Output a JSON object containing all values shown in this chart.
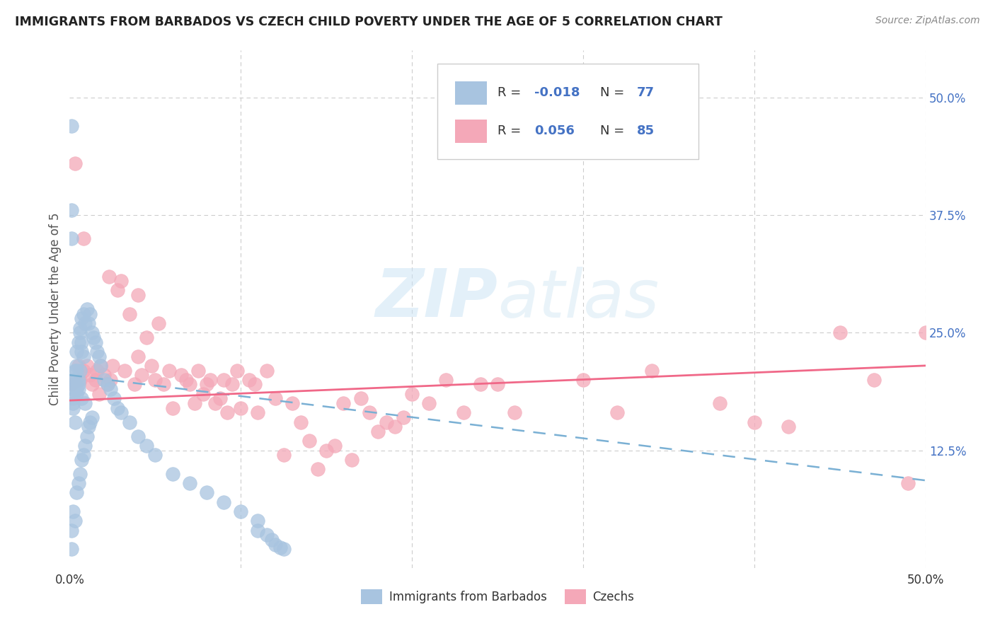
{
  "title": "IMMIGRANTS FROM BARBADOS VS CZECH CHILD POVERTY UNDER THE AGE OF 5 CORRELATION CHART",
  "source": "Source: ZipAtlas.com",
  "ylabel": "Child Poverty Under the Age of 5",
  "xlim": [
    0.0,
    0.5
  ],
  "ylim": [
    0.0,
    0.55
  ],
  "color_blue": "#a8c4e0",
  "color_pink": "#f4a8b8",
  "line_blue_color": "#7ab0d4",
  "line_pink_color": "#f06888",
  "watermark": "ZIPatlas",
  "blue_line_x0": 0.0,
  "blue_line_y0": 0.205,
  "blue_line_x1": 0.5,
  "blue_line_y1": 0.093,
  "pink_line_x0": 0.0,
  "pink_line_y0": 0.178,
  "pink_line_x1": 0.5,
  "pink_line_y1": 0.215,
  "barbados_x": [
    0.001,
    0.001,
    0.001,
    0.001,
    0.001,
    0.002,
    0.002,
    0.002,
    0.002,
    0.002,
    0.002,
    0.003,
    0.003,
    0.003,
    0.003,
    0.003,
    0.004,
    0.004,
    0.004,
    0.004,
    0.004,
    0.004,
    0.005,
    0.005,
    0.005,
    0.005,
    0.005,
    0.006,
    0.006,
    0.006,
    0.006,
    0.007,
    0.007,
    0.007,
    0.007,
    0.007,
    0.008,
    0.008,
    0.008,
    0.009,
    0.009,
    0.009,
    0.01,
    0.01,
    0.011,
    0.011,
    0.012,
    0.012,
    0.013,
    0.013,
    0.014,
    0.015,
    0.016,
    0.017,
    0.018,
    0.02,
    0.022,
    0.024,
    0.026,
    0.028,
    0.03,
    0.035,
    0.04,
    0.045,
    0.05,
    0.06,
    0.07,
    0.08,
    0.09,
    0.1,
    0.11,
    0.11,
    0.115,
    0.118,
    0.12,
    0.123,
    0.125
  ],
  "barbados_y": [
    0.47,
    0.02,
    0.35,
    0.38,
    0.04,
    0.2,
    0.19,
    0.18,
    0.175,
    0.17,
    0.06,
    0.21,
    0.2,
    0.195,
    0.155,
    0.05,
    0.23,
    0.215,
    0.21,
    0.19,
    0.185,
    0.08,
    0.24,
    0.2,
    0.195,
    0.19,
    0.09,
    0.255,
    0.25,
    0.21,
    0.1,
    0.265,
    0.24,
    0.23,
    0.18,
    0.115,
    0.27,
    0.225,
    0.12,
    0.26,
    0.175,
    0.13,
    0.275,
    0.14,
    0.26,
    0.15,
    0.27,
    0.155,
    0.25,
    0.16,
    0.245,
    0.24,
    0.23,
    0.225,
    0.215,
    0.2,
    0.195,
    0.19,
    0.18,
    0.17,
    0.165,
    0.155,
    0.14,
    0.13,
    0.12,
    0.1,
    0.09,
    0.08,
    0.07,
    0.06,
    0.05,
    0.04,
    0.035,
    0.03,
    0.025,
    0.022,
    0.02
  ],
  "czech_x": [
    0.001,
    0.003,
    0.005,
    0.006,
    0.008,
    0.008,
    0.01,
    0.012,
    0.013,
    0.015,
    0.016,
    0.017,
    0.018,
    0.02,
    0.022,
    0.023,
    0.024,
    0.025,
    0.028,
    0.03,
    0.032,
    0.035,
    0.038,
    0.04,
    0.04,
    0.042,
    0.045,
    0.048,
    0.05,
    0.052,
    0.055,
    0.058,
    0.06,
    0.065,
    0.068,
    0.07,
    0.073,
    0.075,
    0.078,
    0.08,
    0.082,
    0.085,
    0.088,
    0.09,
    0.092,
    0.095,
    0.098,
    0.1,
    0.105,
    0.108,
    0.11,
    0.115,
    0.12,
    0.125,
    0.13,
    0.135,
    0.14,
    0.145,
    0.15,
    0.155,
    0.16,
    0.165,
    0.17,
    0.175,
    0.18,
    0.185,
    0.19,
    0.195,
    0.2,
    0.21,
    0.22,
    0.23,
    0.24,
    0.25,
    0.26,
    0.3,
    0.32,
    0.34,
    0.38,
    0.4,
    0.42,
    0.45,
    0.47,
    0.49,
    0.5
  ],
  "czech_y": [
    0.195,
    0.43,
    0.215,
    0.2,
    0.21,
    0.35,
    0.215,
    0.205,
    0.195,
    0.2,
    0.21,
    0.185,
    0.215,
    0.205,
    0.195,
    0.31,
    0.2,
    0.215,
    0.295,
    0.305,
    0.21,
    0.27,
    0.195,
    0.225,
    0.29,
    0.205,
    0.245,
    0.215,
    0.2,
    0.26,
    0.195,
    0.21,
    0.17,
    0.205,
    0.2,
    0.195,
    0.175,
    0.21,
    0.185,
    0.195,
    0.2,
    0.175,
    0.18,
    0.2,
    0.165,
    0.195,
    0.21,
    0.17,
    0.2,
    0.195,
    0.165,
    0.21,
    0.18,
    0.12,
    0.175,
    0.155,
    0.135,
    0.105,
    0.125,
    0.13,
    0.175,
    0.115,
    0.18,
    0.165,
    0.145,
    0.155,
    0.15,
    0.16,
    0.185,
    0.175,
    0.2,
    0.165,
    0.195,
    0.195,
    0.165,
    0.2,
    0.165,
    0.21,
    0.175,
    0.155,
    0.15,
    0.25,
    0.2,
    0.09,
    0.25
  ]
}
